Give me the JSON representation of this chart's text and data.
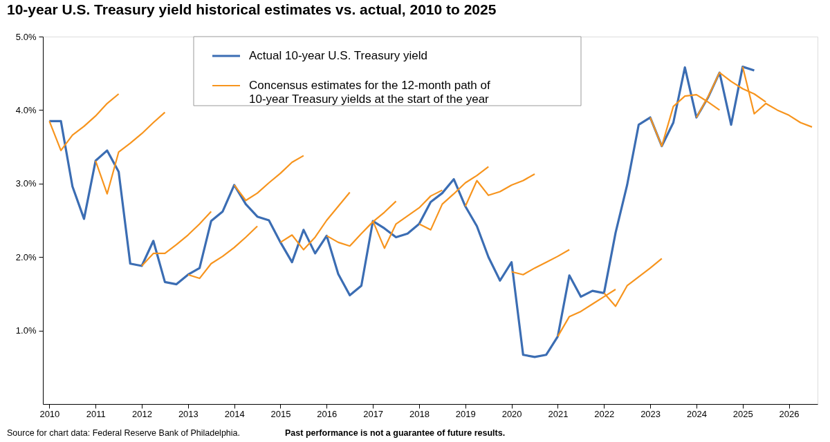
{
  "chart_data": {
    "type": "line",
    "title": "10-year U.S. Treasury yield historical estimates vs. actual, 2010 to 2025",
    "xlim": [
      2009.86,
      2026.62
    ],
    "xticks": [
      2010,
      2011,
      2012,
      2013,
      2014,
      2015,
      2016,
      2017,
      2018,
      2019,
      2020,
      2021,
      2022,
      2023,
      2024,
      2025,
      2026
    ],
    "ylim": [
      0,
      5
    ],
    "yticks": [
      {
        "value": 1,
        "label": "1.0%"
      },
      {
        "value": 2,
        "label": "2.0%"
      },
      {
        "value": 3,
        "label": "3.0%"
      },
      {
        "value": 4,
        "label": "4.0%"
      },
      {
        "value": 5,
        "label": "5.0%"
      }
    ],
    "grid": false,
    "legend": "top",
    "marker": "none",
    "line_style": "solid",
    "annotations": [
      "Source for chart data: Federal Reserve Bank of Philadelphia.",
      "Past performance is not a guarantee of future results."
    ],
    "series": [
      {
        "name": "Actual 10-year U.S. Treasury yield",
        "color": "#3b6db3",
        "x": [
          2010,
          2010.25,
          2010.5,
          2010.75,
          2011,
          2011.25,
          2011.5,
          2011.75,
          2012,
          2012.25,
          2012.5,
          2012.75,
          2013,
          2013.25,
          2013.5,
          2013.75,
          2014,
          2014.25,
          2014.5,
          2014.75,
          2015,
          2015.25,
          2015.5,
          2015.75,
          2016,
          2016.25,
          2016.5,
          2016.75,
          2017,
          2017.25,
          2017.5,
          2017.75,
          2018,
          2018.25,
          2018.5,
          2018.75,
          2019,
          2019.25,
          2019.5,
          2019.75,
          2020,
          2020.25,
          2020.5,
          2020.75,
          2021,
          2021.25,
          2021.5,
          2021.75,
          2022,
          2022.25,
          2022.5,
          2022.75,
          2023,
          2023.25,
          2023.5,
          2023.75,
          2024,
          2024.25,
          2024.5,
          2024.75,
          2025,
          2025.25
        ],
        "values": [
          3.85,
          3.85,
          2.96,
          2.52,
          3.31,
          3.45,
          3.16,
          1.91,
          1.88,
          2.22,
          1.66,
          1.63,
          1.76,
          1.85,
          2.49,
          2.62,
          2.98,
          2.72,
          2.55,
          2.5,
          2.2,
          1.93,
          2.37,
          2.05,
          2.29,
          1.77,
          1.48,
          1.61,
          2.49,
          2.39,
          2.27,
          2.32,
          2.45,
          2.75,
          2.87,
          3.06,
          2.69,
          2.42,
          2.0,
          1.68,
          1.93,
          0.67,
          0.64,
          0.67,
          0.92,
          1.75,
          1.46,
          1.54,
          1.51,
          2.33,
          2.98,
          3.8,
          3.9,
          3.51,
          3.83,
          4.58,
          3.9,
          4.17,
          4.51,
          3.8,
          4.59,
          4.54
        ]
      },
      {
        "name": "Concensus estimates for the 12-month path of 10-year Treasury yields at the start of the year",
        "color": "#f7941d",
        "x": [
          2010,
          2010.25,
          2010.5,
          2010.75,
          2011,
          2011.25,
          2011.5
        ],
        "values": [
          3.85,
          3.45,
          3.66,
          3.78,
          3.92,
          4.09,
          4.22
        ]
      },
      {
        "color": "#f7941d",
        "x": [
          2011,
          2011.25,
          2011.5,
          2011.75,
          2012,
          2012.25,
          2012.5
        ],
        "values": [
          3.31,
          2.86,
          3.43,
          3.55,
          3.68,
          3.83,
          3.97
        ]
      },
      {
        "color": "#f7941d",
        "x": [
          2012,
          2012.25,
          2012.5,
          2012.75,
          2013,
          2013.25,
          2013.5
        ],
        "values": [
          1.88,
          2.05,
          2.05,
          2.17,
          2.3,
          2.45,
          2.62
        ]
      },
      {
        "color": "#f7941d",
        "x": [
          2013,
          2013.25,
          2013.5,
          2013.75,
          2014,
          2014.25,
          2014.5
        ],
        "values": [
          1.76,
          1.71,
          1.91,
          2.01,
          2.13,
          2.27,
          2.42
        ]
      },
      {
        "color": "#f7941d",
        "x": [
          2014,
          2014.25,
          2014.5,
          2014.75,
          2015,
          2015.25,
          2015.5
        ],
        "values": [
          2.98,
          2.77,
          2.87,
          3.01,
          3.14,
          3.29,
          3.38
        ]
      },
      {
        "color": "#f7941d",
        "x": [
          2015,
          2015.25,
          2015.5,
          2015.75,
          2016,
          2016.25,
          2016.5
        ],
        "values": [
          2.2,
          2.3,
          2.1,
          2.27,
          2.5,
          2.69,
          2.88
        ]
      },
      {
        "color": "#f7941d",
        "x": [
          2016,
          2016.25,
          2016.5,
          2016.75,
          2017,
          2017.25,
          2017.5
        ],
        "values": [
          2.29,
          2.2,
          2.15,
          2.32,
          2.48,
          2.61,
          2.76
        ]
      },
      {
        "color": "#f7941d",
        "x": [
          2017,
          2017.25,
          2017.5,
          2017.75,
          2018,
          2018.25,
          2018.5
        ],
        "values": [
          2.49,
          2.12,
          2.45,
          2.56,
          2.67,
          2.83,
          2.91
        ]
      },
      {
        "color": "#f7941d",
        "x": [
          2018,
          2018.25,
          2018.5,
          2018.75,
          2019,
          2019.25,
          2019.5
        ],
        "values": [
          2.45,
          2.37,
          2.72,
          2.86,
          3.01,
          3.11,
          3.23
        ]
      },
      {
        "color": "#f7941d",
        "x": [
          2019,
          2019.25,
          2019.5,
          2019.75,
          2020,
          2020.25,
          2020.5
        ],
        "values": [
          2.69,
          3.04,
          2.84,
          2.89,
          2.98,
          3.04,
          3.13
        ]
      },
      {
        "color": "#f7941d",
        "x": [
          2020,
          2020.25,
          2020.5,
          2020.75,
          2021,
          2021.25
        ],
        "values": [
          1.8,
          1.76,
          1.85,
          1.93,
          2.01,
          2.1
        ]
      },
      {
        "color": "#f7941d",
        "x": [
          2021,
          2021.25,
          2021.5,
          2021.75,
          2022,
          2022.25
        ],
        "values": [
          0.92,
          1.19,
          1.26,
          1.36,
          1.46,
          1.56
        ]
      },
      {
        "color": "#f7941d",
        "x": [
          2022,
          2022.25,
          2022.5,
          2022.75,
          2023,
          2023.25
        ],
        "values": [
          1.51,
          1.33,
          1.61,
          1.73,
          1.85,
          1.98
        ]
      },
      {
        "color": "#f7941d",
        "x": [
          2023,
          2023.25,
          2023.5,
          2023.75,
          2024,
          2024.25,
          2024.5
        ],
        "values": [
          3.9,
          3.51,
          4.05,
          4.19,
          4.21,
          4.11,
          4.0
        ]
      },
      {
        "color": "#f7941d",
        "x": [
          2024,
          2024.25,
          2024.5,
          2024.75,
          2025,
          2025.25,
          2025.5
        ],
        "values": [
          3.9,
          4.18,
          4.51,
          4.39,
          4.29,
          4.22,
          4.11
        ]
      },
      {
        "color": "#f7941d",
        "x": [
          2025,
          2025.25,
          2025.5,
          2025.75,
          2026,
          2026.25,
          2026.5
        ],
        "values": [
          4.59,
          3.95,
          4.09,
          4.0,
          3.93,
          3.83,
          3.77
        ]
      }
    ]
  }
}
